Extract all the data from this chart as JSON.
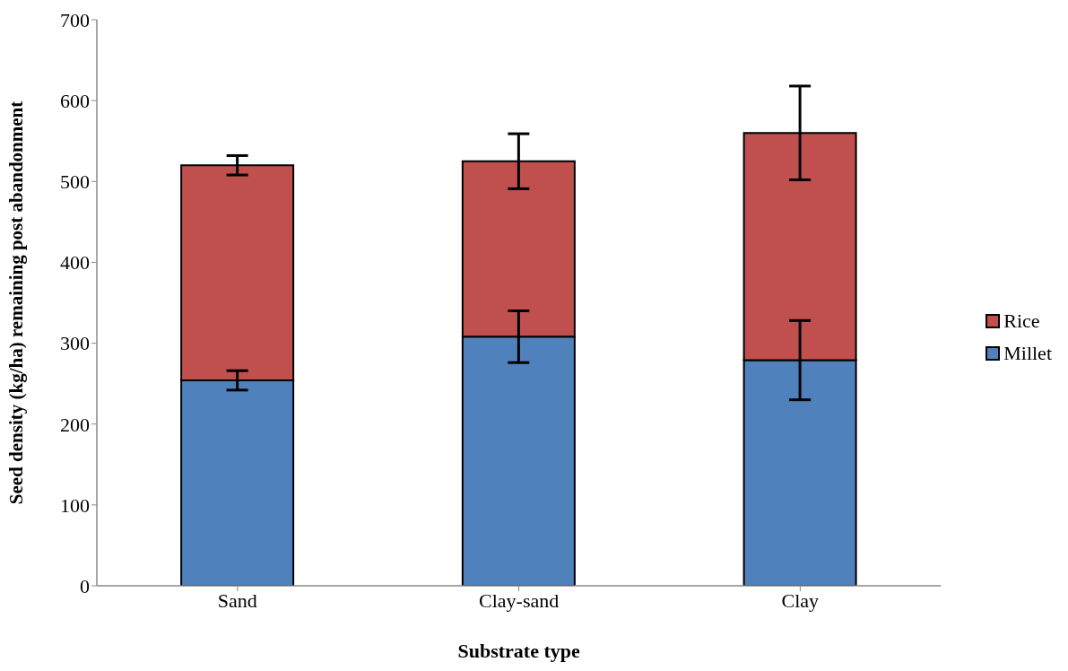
{
  "chart_data": {
    "type": "bar",
    "stacked": true,
    "xlabel": "Substrate type",
    "ylabel": "Seed density (kg/ha) remaining post abandonment",
    "categories": [
      "Sand",
      "Clay-sand",
      "Clay"
    ],
    "series": [
      {
        "name": "Millet",
        "color": "#4f81bd",
        "values": [
          254,
          308,
          279
        ],
        "errors": [
          12,
          32,
          49
        ]
      },
      {
        "name": "Rice",
        "color": "#c0504d",
        "values": [
          266,
          217,
          281
        ],
        "errors": [
          12,
          34,
          58
        ]
      }
    ],
    "ylim": [
      0,
      700
    ],
    "yticks": [
      0,
      100,
      200,
      300,
      400,
      500,
      600,
      700
    ],
    "grid": false,
    "legend": "right"
  }
}
